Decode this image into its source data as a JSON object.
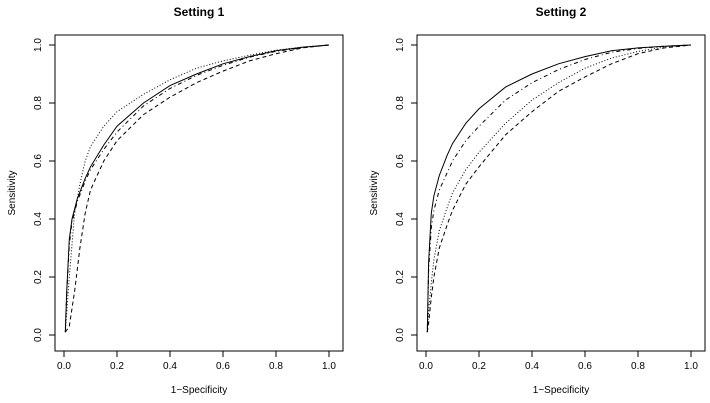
{
  "chart_data": [
    {
      "type": "line",
      "title": "Setting 1",
      "xlabel": "1−Specificity",
      "ylabel": "Sensitivity",
      "xlim": [
        0,
        1
      ],
      "ylim": [
        0,
        1
      ],
      "xticks": [
        "0.0",
        "0.2",
        "0.4",
        "0.6",
        "0.8",
        "1.0"
      ],
      "yticks": [
        "0.0",
        "0.2",
        "0.4",
        "0.6",
        "0.8",
        "1.0"
      ],
      "grid": false,
      "series": [
        {
          "style": "solid",
          "x": [
            0.005,
            0.01,
            0.02,
            0.03,
            0.05,
            0.08,
            0.1,
            0.15,
            0.2,
            0.3,
            0.4,
            0.5,
            0.6,
            0.7,
            0.8,
            0.9,
            1.0
          ],
          "y": [
            0.01,
            0.15,
            0.33,
            0.4,
            0.47,
            0.54,
            0.58,
            0.655,
            0.72,
            0.8,
            0.86,
            0.9,
            0.935,
            0.96,
            0.98,
            0.992,
            1.0
          ]
        },
        {
          "style": "dashed",
          "x": [
            0.005,
            0.02,
            0.04,
            0.06,
            0.08,
            0.1,
            0.15,
            0.2,
            0.3,
            0.4,
            0.5,
            0.6,
            0.7,
            0.8,
            0.9,
            1.0
          ],
          "y": [
            0.01,
            0.03,
            0.15,
            0.3,
            0.42,
            0.5,
            0.6,
            0.67,
            0.76,
            0.82,
            0.87,
            0.91,
            0.945,
            0.97,
            0.99,
            1.0
          ]
        },
        {
          "style": "dotted",
          "x": [
            0.005,
            0.02,
            0.04,
            0.06,
            0.08,
            0.1,
            0.15,
            0.2,
            0.3,
            0.4,
            0.5,
            0.6,
            0.7,
            0.8,
            0.9,
            1.0
          ],
          "y": [
            0.01,
            0.2,
            0.42,
            0.52,
            0.6,
            0.65,
            0.72,
            0.77,
            0.83,
            0.88,
            0.92,
            0.945,
            0.965,
            0.982,
            0.993,
            1.0
          ]
        },
        {
          "style": "dotdash",
          "x": [
            0.005,
            0.01,
            0.02,
            0.03,
            0.05,
            0.08,
            0.1,
            0.15,
            0.2,
            0.3,
            0.4,
            0.5,
            0.6,
            0.7,
            0.8,
            0.9,
            1.0
          ],
          "y": [
            0.01,
            0.14,
            0.31,
            0.39,
            0.46,
            0.53,
            0.57,
            0.64,
            0.7,
            0.79,
            0.85,
            0.895,
            0.93,
            0.958,
            0.978,
            0.991,
            1.0
          ]
        }
      ]
    },
    {
      "type": "line",
      "title": "Setting 2",
      "xlabel": "1−Specificity",
      "ylabel": "Sensitivity",
      "xlim": [
        0,
        1
      ],
      "ylim": [
        0,
        1
      ],
      "xticks": [
        "0.0",
        "0.2",
        "0.4",
        "0.6",
        "0.8",
        "1.0"
      ],
      "yticks": [
        "0.0",
        "0.2",
        "0.4",
        "0.6",
        "0.8",
        "1.0"
      ],
      "grid": false,
      "series": [
        {
          "style": "solid",
          "x": [
            0.005,
            0.01,
            0.02,
            0.03,
            0.05,
            0.08,
            0.1,
            0.15,
            0.2,
            0.3,
            0.4,
            0.5,
            0.6,
            0.7,
            0.8,
            0.9,
            1.0
          ],
          "y": [
            0.01,
            0.25,
            0.42,
            0.48,
            0.55,
            0.62,
            0.66,
            0.73,
            0.78,
            0.855,
            0.9,
            0.935,
            0.96,
            0.98,
            0.99,
            0.996,
            1.0
          ]
        },
        {
          "style": "dotdash",
          "x": [
            0.005,
            0.01,
            0.02,
            0.03,
            0.05,
            0.08,
            0.1,
            0.15,
            0.2,
            0.3,
            0.4,
            0.5,
            0.6,
            0.7,
            0.8,
            0.9,
            1.0
          ],
          "y": [
            0.01,
            0.22,
            0.37,
            0.43,
            0.5,
            0.56,
            0.6,
            0.67,
            0.72,
            0.81,
            0.87,
            0.915,
            0.95,
            0.975,
            0.988,
            0.996,
            1.0
          ]
        },
        {
          "style": "dotted",
          "x": [
            0.005,
            0.01,
            0.02,
            0.03,
            0.05,
            0.08,
            0.1,
            0.15,
            0.2,
            0.3,
            0.4,
            0.5,
            0.6,
            0.7,
            0.8,
            0.9,
            1.0
          ],
          "y": [
            0.01,
            0.08,
            0.18,
            0.26,
            0.36,
            0.44,
            0.49,
            0.57,
            0.63,
            0.73,
            0.81,
            0.87,
            0.92,
            0.955,
            0.978,
            0.993,
            1.0
          ]
        },
        {
          "style": "dashed",
          "x": [
            0.005,
            0.01,
            0.02,
            0.03,
            0.05,
            0.08,
            0.1,
            0.15,
            0.2,
            0.3,
            0.4,
            0.5,
            0.6,
            0.7,
            0.8,
            0.9,
            1.0
          ],
          "y": [
            0.01,
            0.04,
            0.13,
            0.2,
            0.3,
            0.38,
            0.43,
            0.52,
            0.58,
            0.69,
            0.77,
            0.84,
            0.89,
            0.935,
            0.97,
            0.99,
            1.0
          ]
        }
      ]
    }
  ]
}
